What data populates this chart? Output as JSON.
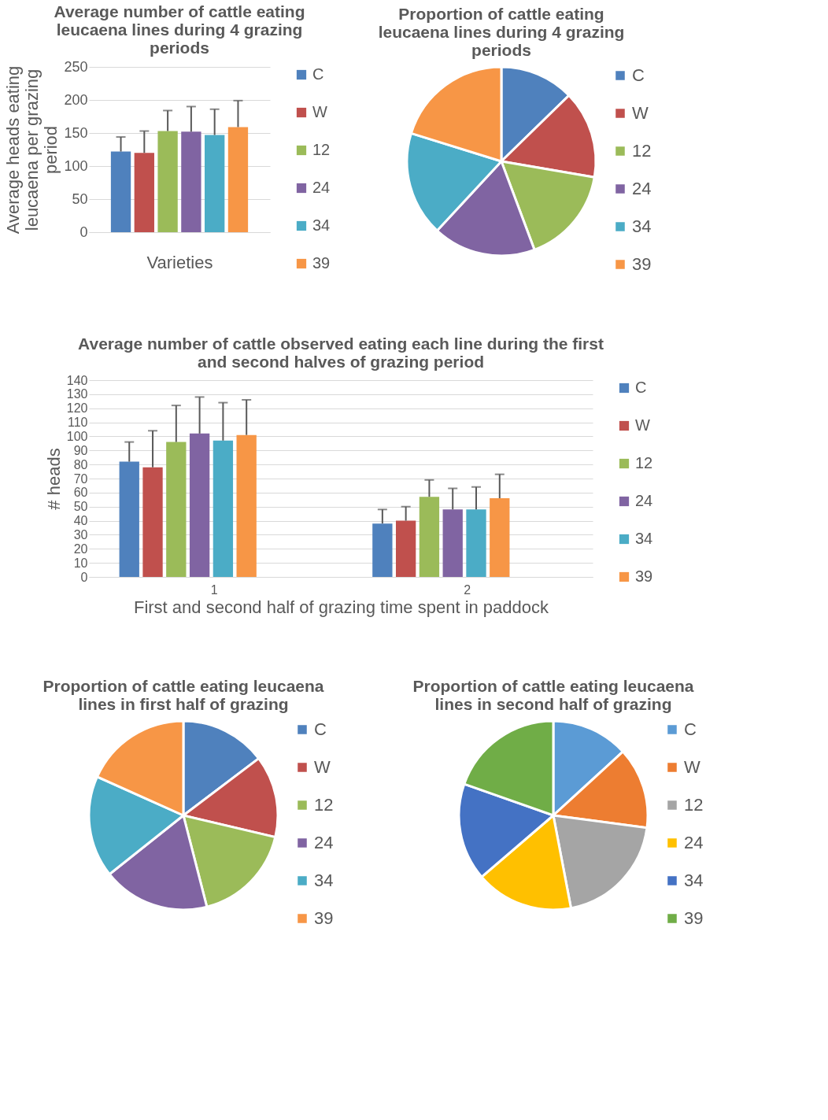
{
  "chart_data": [
    {
      "type": "bar",
      "title": "Average number of cattle eating leucaena lines during 4 grazing periods",
      "ylabel": "Average heads eating leucaena per grazing period",
      "xlabel": "Varieties",
      "categories": [
        null
      ],
      "ylim": [
        0,
        250
      ],
      "yticks": [
        0,
        50,
        100,
        150,
        200,
        250
      ],
      "grid": "y",
      "legend": "right",
      "series": [
        {
          "name": "C",
          "color": "#4f81bd",
          "values": [
            122
          ],
          "errors": [
            [
              122,
              144
            ]
          ]
        },
        {
          "name": "W",
          "color": "#c0504d",
          "values": [
            120
          ],
          "errors": [
            [
              120,
              153
            ]
          ]
        },
        {
          "name": "12",
          "color": "#9bbb59",
          "values": [
            153
          ],
          "errors": [
            [
              153,
              184
            ]
          ]
        },
        {
          "name": "24",
          "color": "#8064a2",
          "values": [
            152
          ],
          "errors": [
            [
              152,
              190
            ]
          ]
        },
        {
          "name": "34",
          "color": "#4bacc6",
          "values": [
            147
          ],
          "errors": [
            [
              147,
              186
            ]
          ]
        },
        {
          "name": "39",
          "color": "#f79646",
          "values": [
            159
          ],
          "errors": [
            [
              159,
              199
            ]
          ]
        }
      ]
    },
    {
      "type": "pie",
      "title": "Proportion of cattle eating leucaena lines during 4 grazing periods",
      "legend": "right",
      "categories": [
        "C",
        "W",
        "12",
        "24",
        "34",
        "39"
      ],
      "values": [
        12.7,
        15.0,
        16.6,
        17.6,
        17.9,
        20.2
      ],
      "colors": [
        "#4f81bd",
        "#c0504d",
        "#9bbb59",
        "#8064a2",
        "#4bacc6",
        "#f79646"
      ]
    },
    {
      "type": "bar",
      "title": "Average number of cattle observed eating each line during the first and second halves of grazing period",
      "xlabel": "First and second half of grazing time spent in paddock",
      "ylabel": "# heads",
      "categories": [
        "1",
        "2"
      ],
      "ylim": [
        0,
        140
      ],
      "yticks": [
        0,
        10,
        20,
        30,
        40,
        50,
        60,
        70,
        80,
        90,
        100,
        110,
        120,
        130,
        140
      ],
      "grid": "y",
      "legend": "right",
      "series": [
        {
          "name": "C",
          "color": "#4f81bd",
          "values": [
            82,
            38
          ],
          "errors": [
            [
              82,
              96
            ],
            [
              38,
              48
            ]
          ]
        },
        {
          "name": "W",
          "color": "#c0504d",
          "values": [
            78,
            40
          ],
          "errors": [
            [
              78,
              104
            ],
            [
              40,
              50
            ]
          ]
        },
        {
          "name": "12",
          "color": "#9bbb59",
          "values": [
            96,
            57
          ],
          "errors": [
            [
              96,
              122
            ],
            [
              57,
              69
            ]
          ]
        },
        {
          "name": "24",
          "color": "#8064a2",
          "values": [
            102,
            48
          ],
          "errors": [
            [
              102,
              128
            ],
            [
              48,
              63
            ]
          ]
        },
        {
          "name": "34",
          "color": "#4bacc6",
          "values": [
            97,
            48
          ],
          "errors": [
            [
              97,
              124
            ],
            [
              48,
              64
            ]
          ]
        },
        {
          "name": "39",
          "color": "#f79646",
          "values": [
            101,
            56
          ],
          "errors": [
            [
              101,
              126
            ],
            [
              56,
              73
            ]
          ]
        }
      ]
    },
    {
      "type": "pie",
      "title": "Proportion of cattle eating leucaena lines in first half of grazing",
      "legend": "right",
      "categories": [
        "C",
        "W",
        "12",
        "24",
        "34",
        "39"
      ],
      "values": [
        14.7,
        14.0,
        17.3,
        18.3,
        17.4,
        18.3
      ],
      "colors": [
        "#4f81bd",
        "#c0504d",
        "#9bbb59",
        "#8064a2",
        "#4bacc6",
        "#f79646"
      ]
    },
    {
      "type": "pie",
      "title": "Proportion of cattle eating leucaena lines in second half of grazing",
      "legend": "right",
      "categories": [
        "C",
        "W",
        "12",
        "24",
        "34",
        "39"
      ],
      "values": [
        13.2,
        13.9,
        19.9,
        16.7,
        16.7,
        19.6
      ],
      "colors": [
        "#5b9bd5",
        "#ed7d31",
        "#a5a5a5",
        "#ffc000",
        "#4472c4",
        "#70ad47"
      ]
    }
  ]
}
